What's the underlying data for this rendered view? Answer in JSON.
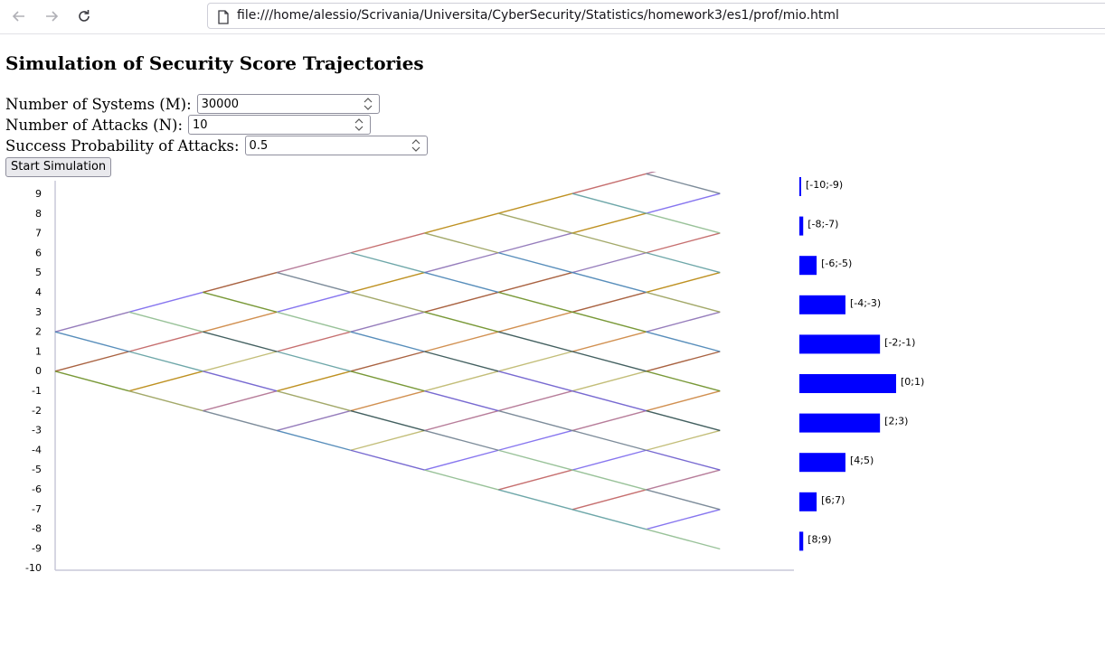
{
  "browser": {
    "url": "file:///home/alessio/Scrivania/Universita/CyberSecurity/Statistics/homework3/es1/prof/mio.html"
  },
  "page": {
    "title": "Simulation of Security Score Trajectories",
    "systems_label": "Number of Systems (M):",
    "systems_value": "30000",
    "attacks_label": "Number of Attacks (N):",
    "attacks_value": "10",
    "prob_label": "Success Probability of Attacks:",
    "prob_value": "0.5",
    "start_button": "Start Simulation"
  },
  "chart_data": {
    "type": "line",
    "y_ticks": [
      "9",
      "8",
      "7",
      "6",
      "5",
      "4",
      "3",
      "2",
      "1",
      "0",
      "-1",
      "-2",
      "-3",
      "-4",
      "-5",
      "-6",
      "-7",
      "-8",
      "-9",
      "-10"
    ],
    "steps": 10,
    "ylim": [
      -10,
      10
    ],
    "histogram_color": "#0000ff",
    "histogram": [
      {
        "label": "[-10;-9)",
        "count": 29
      },
      {
        "label": "[-8;-7)",
        "count": 293
      },
      {
        "label": "[-6;-5)",
        "count": 1318
      },
      {
        "label": "[-4;-3)",
        "count": 3516
      },
      {
        "label": "[-2;-1)",
        "count": 6152
      },
      {
        "label": "[0;1)",
        "count": 7383
      },
      {
        "label": "[2;3)",
        "count": 6152
      },
      {
        "label": "[4;5)",
        "count": 3516
      },
      {
        "label": "[6;7)",
        "count": 1318
      },
      {
        "label": "[8;9)",
        "count": 293
      }
    ]
  }
}
